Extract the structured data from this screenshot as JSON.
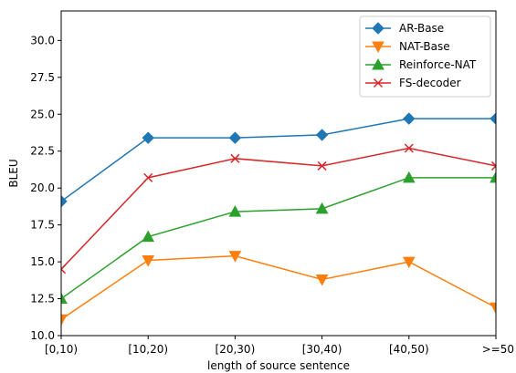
{
  "chart_data": {
    "type": "line",
    "xlabel": "length of source sentence",
    "ylabel": "BLEU",
    "categories": [
      "[0,10)",
      "[10,20)",
      "[20,30)",
      "[30,40)",
      "[40,50)",
      ">=50"
    ],
    "ylim": [
      10.0,
      32.0
    ],
    "yticks": [
      "10.0",
      "12.5",
      "15.0",
      "17.5",
      "20.0",
      "22.5",
      "25.0",
      "27.5",
      "30.0"
    ],
    "grid": false,
    "legend_position": "top-right",
    "series": [
      {
        "name": "AR-Base",
        "color": "#1f77b4",
        "marker": "diamond",
        "values": [
          19.1,
          23.4,
          23.4,
          23.6,
          24.7,
          24.7
        ]
      },
      {
        "name": "NAT-Base",
        "color": "#ff7f0e",
        "marker": "triangle-down",
        "values": [
          11.1,
          15.1,
          15.4,
          13.8,
          15.0,
          11.9
        ]
      },
      {
        "name": "Reinforce-NAT",
        "color": "#2ca02c",
        "marker": "triangle-up",
        "values": [
          12.5,
          16.7,
          18.4,
          18.6,
          20.7,
          20.7
        ]
      },
      {
        "name": "FS-decoder",
        "color": "#d62728",
        "marker": "x",
        "values": [
          14.5,
          20.7,
          22.0,
          21.5,
          22.7,
          21.5
        ]
      }
    ]
  }
}
